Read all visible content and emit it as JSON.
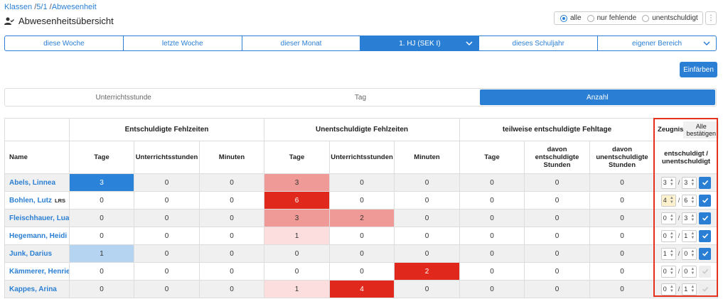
{
  "breadcrumb": {
    "part1": "Klassen",
    "sep1": " /",
    "part2": "5/1",
    "sep2": " /",
    "part3": "Abwesenheit"
  },
  "page_title": "Abwesenheitsübersicht",
  "filter": {
    "all": "alle",
    "missing": "nur fehlende",
    "unexcused": "unentschuldigt"
  },
  "range_tabs": [
    "diese Woche",
    "letzte Woche",
    "dieser Monat",
    "1. HJ (SEK I)",
    "dieses Schuljahr",
    "eigener Bereich"
  ],
  "color_button": "Einfärben",
  "mode_tabs": [
    "Unterrichtsstunde",
    "Tag",
    "Anzahl"
  ],
  "table": {
    "group_excused": "Entschuldigte Fehlzeiten",
    "group_unexcused": "Unentschuldigte Fehlzeiten",
    "group_partial": "teilweise entschuldigte Fehltage",
    "zeugnis": "Zeugnis",
    "confirm_all": "Alle bestätigen",
    "col_name": "Name",
    "col_days": "Tage",
    "col_lessons": "Unterrichtsstunden",
    "col_minutes": "Minuten",
    "col_partial_excused": "davon entschuldigte Stunden",
    "col_partial_unexcused": "davon unentschuldigte Stunden",
    "col_zeugnis": "entschuldigt / unentschuldigt",
    "slash": "/",
    "colors": {
      "blue_strong": "#2a83d8",
      "blue_light": "#b5d4f1",
      "red_strong": "#e0281c",
      "red_mid": "#ef9a96",
      "red_light": "#fbdedd"
    },
    "rows": [
      {
        "name": "Abels, Linnea",
        "badge": "",
        "ex_days": "3",
        "ex_lessons": "0",
        "ex_min": "0",
        "un_days": "3",
        "un_lessons": "0",
        "un_min": "0",
        "p_days": "0",
        "p_ex": "0",
        "p_un": "0",
        "z_ex": "3",
        "z_un": "3",
        "confirmed": true,
        "warn": false
      },
      {
        "name": "Bohlen, Lutz",
        "badge": "LRS",
        "ex_days": "0",
        "ex_lessons": "0",
        "ex_min": "0",
        "un_days": "6",
        "un_lessons": "0",
        "un_min": "0",
        "p_days": "0",
        "p_ex": "0",
        "p_un": "0",
        "z_ex": "4",
        "z_un": "6",
        "confirmed": true,
        "warn": true
      },
      {
        "name": "Fleischhauer, Luana",
        "badge": "",
        "ex_days": "0",
        "ex_lessons": "0",
        "ex_min": "0",
        "un_days": "3",
        "un_lessons": "2",
        "un_min": "0",
        "p_days": "0",
        "p_ex": "0",
        "p_un": "0",
        "z_ex": "0",
        "z_un": "3",
        "confirmed": true,
        "warn": false
      },
      {
        "name": "Hegemann, Heidi",
        "badge": "",
        "ex_days": "0",
        "ex_lessons": "0",
        "ex_min": "0",
        "un_days": "1",
        "un_lessons": "0",
        "un_min": "0",
        "p_days": "0",
        "p_ex": "0",
        "p_un": "0",
        "z_ex": "0",
        "z_un": "1",
        "confirmed": true,
        "warn": false
      },
      {
        "name": "Junk, Darius",
        "badge": "",
        "ex_days": "1",
        "ex_lessons": "0",
        "ex_min": "0",
        "un_days": "0",
        "un_lessons": "0",
        "un_min": "0",
        "p_days": "0",
        "p_ex": "0",
        "p_un": "0",
        "z_ex": "1",
        "z_un": "0",
        "confirmed": true,
        "warn": false
      },
      {
        "name": "Kämmerer, Henriette",
        "badge": "",
        "ex_days": "0",
        "ex_lessons": "0",
        "ex_min": "0",
        "un_days": "0",
        "un_lessons": "0",
        "un_min": "2",
        "p_days": "0",
        "p_ex": "0",
        "p_un": "0",
        "z_ex": "0",
        "z_un": "0",
        "confirmed": false,
        "warn": false
      },
      {
        "name": "Kappes, Arina",
        "badge": "",
        "ex_days": "0",
        "ex_lessons": "0",
        "ex_min": "0",
        "un_days": "1",
        "un_lessons": "4",
        "un_min": "0",
        "p_days": "0",
        "p_ex": "0",
        "p_un": "0",
        "z_ex": "0",
        "z_un": "1",
        "confirmed": false,
        "warn": false
      }
    ]
  }
}
